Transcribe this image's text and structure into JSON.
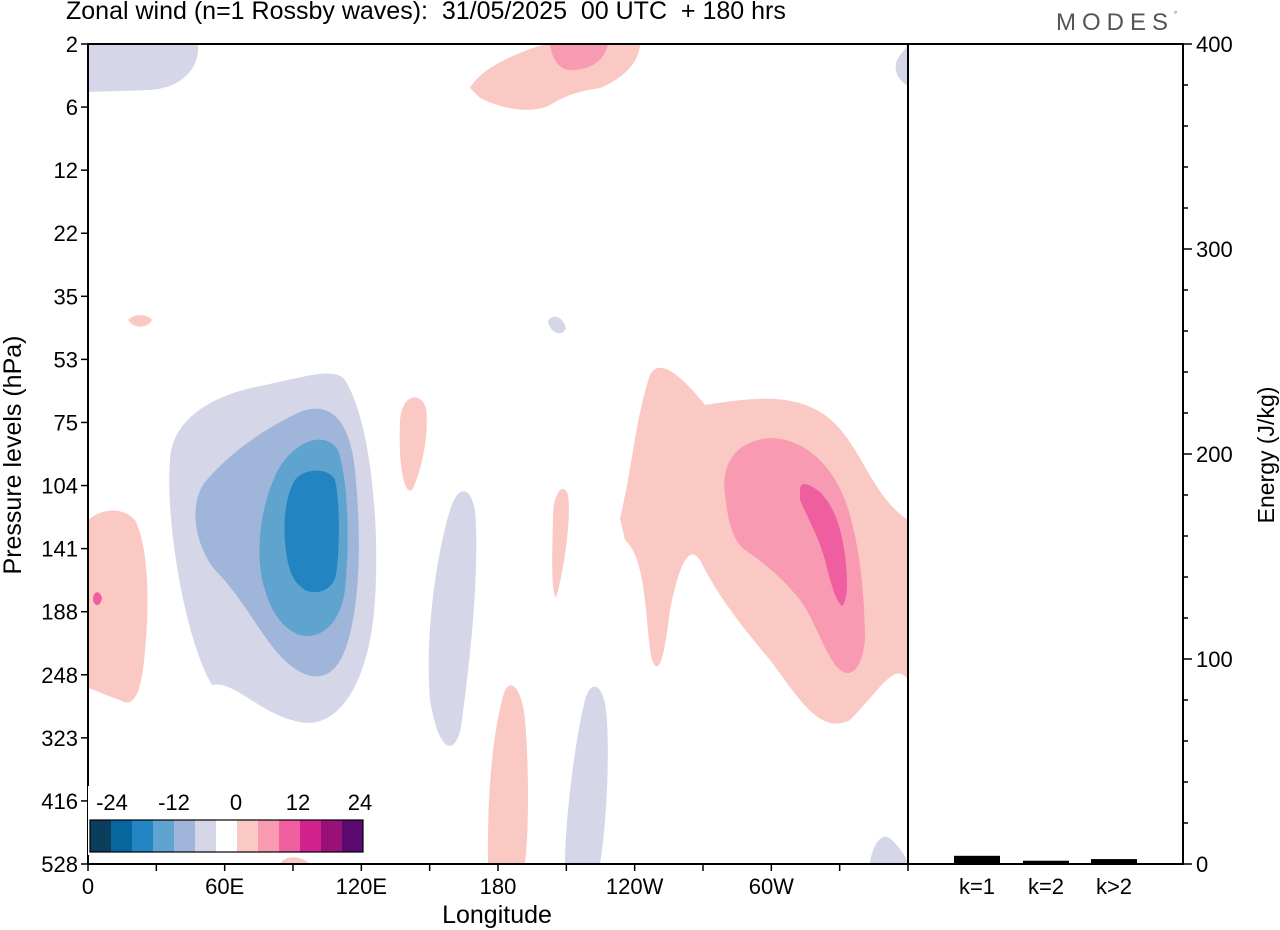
{
  "title": "Zonal wind (n=1 Rossby waves):  31/05/2025  00 UTC  + 180 hrs",
  "brand": "MODES",
  "brand_mark": "°",
  "chart_data": [
    {
      "type": "heatmap",
      "title": "Zonal wind (n=1 Rossby waves):  31/05/2025  00 UTC  + 180 hrs",
      "xlabel": "Longitude",
      "ylabel": "Pressure levels (hPa)",
      "x_ticks": [
        "0",
        "60E",
        "120E",
        "180",
        "120W",
        "60W"
      ],
      "x_tick_values": [
        0,
        60,
        120,
        180,
        240,
        300
      ],
      "xlim": [
        0,
        360
      ],
      "y_ticks": [
        "2",
        "6",
        "12",
        "22",
        "35",
        "53",
        "75",
        "104",
        "141",
        "188",
        "248",
        "323",
        "416",
        "528"
      ],
      "y_scale": "non-linear (model levels, pressure increases downward)",
      "colorbar": {
        "tick_labels": [
          "-24",
          "-12",
          "0",
          "12",
          "24"
        ],
        "colors": [
          "#0b3d5c",
          "#08669e",
          "#2285c1",
          "#5fa3cf",
          "#9fb6da",
          "#d5d6e8",
          "#ffffff",
          "#fbc9c4",
          "#f89ab2",
          "#ef5fa0",
          "#d0238e",
          "#991177",
          "#5a0a6e"
        ],
        "step": 4
      },
      "features": [
        {
          "longitude": 100,
          "pressure_hpa": 141,
          "value_min": -16,
          "note": "easterly (negative) core"
        },
        {
          "longitude": 325,
          "pressure_hpa": 141,
          "value_max": 16,
          "note": "westerly (positive) core"
        },
        {
          "longitude": 200,
          "pressure_hpa": 2,
          "value_max": 8,
          "note": "upper positive patch"
        }
      ]
    },
    {
      "type": "bar",
      "ylabel": "Energy (J/kg)",
      "categories": [
        "k=1",
        "k=2",
        "k>2"
      ],
      "values": [
        0.5,
        0.2,
        0.3
      ],
      "ylim": [
        0,
        400
      ],
      "y_ticks": [
        "0",
        "100",
        "200",
        "300",
        "400"
      ]
    }
  ]
}
